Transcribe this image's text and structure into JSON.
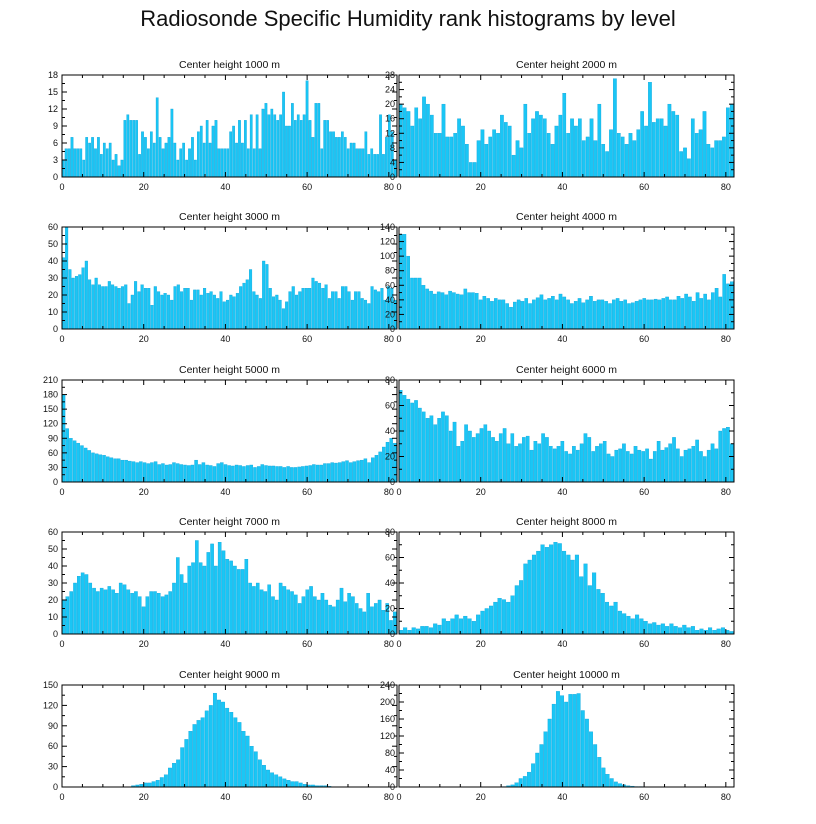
{
  "title": "Radiosonde Specific Humidity rank histograms by level",
  "bar_color": "#1ac6f5",
  "chart_data": [
    {
      "type": "bar",
      "title": "Center height 1000 m",
      "xlim": [
        0,
        82
      ],
      "xticks": [
        0,
        20,
        40,
        60,
        80
      ],
      "ylim": [
        0,
        18
      ],
      "yticks": [
        0,
        3,
        6,
        9,
        12,
        15,
        18
      ],
      "values": [
        3,
        5,
        5,
        7,
        5,
        5,
        5,
        3,
        7,
        6,
        7,
        5,
        7,
        4,
        6,
        5,
        6,
        3,
        4,
        2,
        3,
        10,
        11,
        10,
        10,
        10,
        4,
        8,
        7,
        5,
        8,
        6,
        14,
        7,
        5,
        6,
        7,
        12,
        6,
        3,
        5,
        6,
        3,
        5,
        7,
        3,
        8,
        9,
        6,
        10,
        6,
        9,
        10,
        5,
        5,
        5,
        5,
        8,
        9,
        6,
        10,
        6,
        10,
        5,
        11,
        5,
        11,
        5,
        12,
        13,
        11,
        12,
        11,
        10,
        11,
        15,
        9,
        9,
        13,
        10,
        11,
        10,
        11,
        17,
        10,
        7,
        13,
        13,
        5,
        10,
        10,
        8,
        8,
        7,
        7,
        8,
        7,
        5,
        6,
        6,
        5,
        5,
        5,
        8,
        4,
        5,
        4,
        4,
        11,
        4,
        7,
        11,
        8,
        3
      ]
    },
    {
      "type": "bar",
      "title": "Center height 2000 m",
      "xlim": [
        0,
        82
      ],
      "xticks": [
        0,
        20,
        40,
        60,
        80
      ],
      "ylim": [
        0,
        28
      ],
      "yticks": [
        0,
        4,
        8,
        12,
        16,
        20,
        24,
        28
      ],
      "values": [
        20,
        19,
        18,
        14,
        19,
        16,
        22,
        20,
        17,
        12,
        12,
        20,
        11,
        11,
        12,
        16,
        14,
        9,
        4,
        4,
        10,
        13,
        9,
        11,
        13,
        12,
        17,
        15,
        14,
        6,
        10,
        8,
        20,
        12,
        16,
        18,
        17,
        16,
        12,
        9,
        14,
        17,
        23,
        12,
        16,
        14,
        16,
        10,
        11,
        16,
        10,
        20,
        9,
        7,
        13,
        27,
        12,
        11,
        9,
        12,
        10,
        13,
        18,
        14,
        26,
        15,
        16,
        16,
        14,
        20,
        18,
        17,
        7,
        8,
        5,
        16,
        12,
        13,
        18,
        9,
        8,
        10,
        10,
        11,
        19,
        20
      ]
    },
    {
      "type": "bar",
      "title": "Center height 3000 m",
      "xlim": [
        0,
        82
      ],
      "xticks": [
        0,
        20,
        40,
        60,
        80
      ],
      "ylim": [
        0,
        60
      ],
      "yticks": [
        0,
        10,
        20,
        30,
        40,
        50,
        60
      ],
      "values": [
        42,
        60,
        35,
        30,
        31,
        32,
        36,
        40,
        29,
        26,
        30,
        26,
        25,
        25,
        28,
        26,
        25,
        24,
        25,
        26,
        15,
        20,
        28,
        22,
        26,
        24,
        24,
        14,
        25,
        22,
        20,
        21,
        20,
        17,
        25,
        26,
        22,
        24,
        24,
        17,
        23,
        23,
        20,
        24,
        21,
        22,
        20,
        18,
        22,
        16,
        17,
        20,
        19,
        21,
        25,
        27,
        29,
        35,
        22,
        20,
        18,
        40,
        38,
        24,
        19,
        20,
        17,
        12,
        16,
        22,
        25,
        20,
        22,
        24,
        24,
        24,
        30,
        28,
        27,
        24,
        26,
        18,
        22,
        22,
        18,
        25,
        25,
        22,
        17,
        22,
        22,
        18,
        17,
        15,
        25,
        23,
        22,
        24,
        17,
        25,
        24,
        17
      ]
    },
    {
      "type": "bar",
      "title": "Center height 4000 m",
      "xlim": [
        0,
        82
      ],
      "xticks": [
        0,
        20,
        40,
        60,
        80
      ],
      "ylim": [
        0,
        140
      ],
      "yticks": [
        0,
        20,
        40,
        60,
        80,
        100,
        120,
        140
      ],
      "values": [
        130,
        130,
        100,
        70,
        70,
        70,
        60,
        55,
        52,
        48,
        51,
        50,
        47,
        52,
        50,
        48,
        47,
        55,
        50,
        50,
        49,
        40,
        45,
        42,
        38,
        42,
        40,
        40,
        35,
        30,
        37,
        40,
        38,
        42,
        35,
        40,
        43,
        47,
        40,
        42,
        45,
        40,
        48,
        44,
        40,
        35,
        38,
        42,
        36,
        40,
        45,
        38,
        40,
        40,
        38,
        35,
        40,
        42,
        38,
        40,
        35,
        36,
        38,
        40,
        42,
        40,
        40,
        41,
        40,
        42,
        44,
        40,
        40,
        45,
        42,
        48,
        44,
        38,
        50,
        42,
        48,
        40,
        50,
        56,
        44,
        75,
        62,
        65
      ]
    },
    {
      "type": "bar",
      "title": "Center height 5000 m",
      "xlim": [
        0,
        82
      ],
      "xticks": [
        0,
        20,
        40,
        60,
        80
      ],
      "ylim": [
        0,
        210
      ],
      "yticks": [
        0,
        30,
        60,
        90,
        120,
        150,
        180,
        210
      ],
      "values": [
        180,
        110,
        90,
        85,
        80,
        75,
        70,
        65,
        60,
        58,
        56,
        55,
        52,
        50,
        48,
        48,
        45,
        45,
        43,
        42,
        40,
        42,
        40,
        38,
        40,
        42,
        36,
        38,
        35,
        36,
        40,
        38,
        36,
        35,
        34,
        35,
        45,
        36,
        40,
        35,
        34,
        32,
        38,
        40,
        36,
        34,
        33,
        35,
        34,
        32,
        34,
        35,
        30,
        32,
        36,
        34,
        33,
        33,
        32,
        32,
        30,
        32,
        30,
        30,
        31,
        32,
        33,
        34,
        36,
        35,
        35,
        38,
        38,
        40,
        39,
        40,
        42,
        44,
        40,
        42,
        44,
        45,
        48,
        40,
        50,
        55,
        62,
        72,
        82,
        90,
        80
      ]
    },
    {
      "type": "bar",
      "title": "Center height 6000 m",
      "xlim": [
        0,
        82
      ],
      "xticks": [
        0,
        20,
        40,
        60,
        80
      ],
      "ylim": [
        0,
        80
      ],
      "yticks": [
        0,
        20,
        40,
        60,
        80
      ],
      "values": [
        72,
        68,
        65,
        62,
        64,
        58,
        55,
        50,
        52,
        45,
        50,
        55,
        52,
        40,
        47,
        28,
        32,
        45,
        40,
        35,
        38,
        42,
        45,
        40,
        35,
        32,
        38,
        42,
        30,
        38,
        28,
        30,
        35,
        36,
        25,
        32,
        30,
        38,
        35,
        28,
        26,
        28,
        32,
        24,
        22,
        28,
        25,
        30,
        38,
        35,
        24,
        28,
        30,
        32,
        22,
        20,
        25,
        26,
        30,
        24,
        22,
        28,
        25,
        24,
        26,
        18,
        24,
        32,
        25,
        27,
        30,
        35,
        26,
        20,
        25,
        26,
        28,
        33,
        24,
        20,
        25,
        30,
        26,
        40,
        42,
        43,
        30
      ]
    },
    {
      "type": "bar",
      "title": "Center height 7000 m",
      "xlim": [
        0,
        82
      ],
      "xticks": [
        0,
        20,
        40,
        60,
        80
      ],
      "ylim": [
        0,
        60
      ],
      "yticks": [
        0,
        10,
        20,
        30,
        40,
        50,
        60
      ],
      "values": [
        20,
        22,
        25,
        30,
        34,
        36,
        35,
        30,
        27,
        25,
        27,
        26,
        28,
        26,
        24,
        30,
        29,
        26,
        24,
        25,
        22,
        16,
        22,
        25,
        25,
        24,
        22,
        23,
        25,
        30,
        45,
        35,
        30,
        40,
        42,
        55,
        42,
        40,
        48,
        53,
        40,
        54,
        49,
        44,
        43,
        40,
        38,
        38,
        44,
        30,
        28,
        30,
        26,
        25,
        29,
        22,
        20,
        30,
        28,
        26,
        25,
        23,
        18,
        22,
        26,
        28,
        22,
        20,
        24,
        20,
        17,
        16,
        20,
        27,
        19,
        24,
        22,
        18,
        15,
        13,
        24,
        16,
        18,
        20,
        14,
        18,
        8,
        13
      ]
    },
    {
      "type": "bar",
      "title": "Center height 8000 m",
      "xlim": [
        0,
        82
      ],
      "xticks": [
        0,
        20,
        40,
        60,
        80
      ],
      "ylim": [
        0,
        80
      ],
      "yticks": [
        0,
        20,
        40,
        60,
        80
      ],
      "values": [
        3,
        5,
        3,
        5,
        4,
        6,
        6,
        5,
        8,
        7,
        12,
        10,
        12,
        15,
        12,
        14,
        12,
        10,
        15,
        18,
        20,
        22,
        25,
        28,
        27,
        25,
        30,
        38,
        42,
        55,
        58,
        62,
        65,
        70,
        68,
        70,
        72,
        71,
        65,
        62,
        58,
        62,
        45,
        55,
        38,
        48,
        35,
        32,
        25,
        22,
        25,
        18,
        16,
        14,
        12,
        15,
        12,
        10,
        8,
        9,
        7,
        8,
        6,
        8,
        6,
        5,
        7,
        5,
        6,
        3,
        4,
        3,
        5,
        3,
        4,
        5,
        3,
        2
      ]
    },
    {
      "type": "bar",
      "title": "Center height 9000 m",
      "xlim": [
        0,
        82
      ],
      "xticks": [
        0,
        20,
        40,
        60,
        80
      ],
      "ylim": [
        0,
        150
      ],
      "yticks": [
        0,
        30,
        60,
        90,
        120,
        150
      ],
      "values": [
        0,
        0,
        0,
        0,
        0,
        0,
        0,
        0,
        0,
        0,
        0,
        0,
        0,
        0,
        0,
        0,
        0,
        2,
        3,
        4,
        6,
        6,
        8,
        10,
        14,
        18,
        28,
        35,
        40,
        58,
        70,
        82,
        92,
        98,
        102,
        112,
        120,
        138,
        128,
        125,
        116,
        110,
        102,
        95,
        82,
        75,
        60,
        52,
        40,
        32,
        25,
        21,
        18,
        15,
        12,
        10,
        8,
        8,
        6,
        4,
        3,
        3,
        2,
        2,
        2,
        1,
        0,
        0,
        0,
        0,
        0,
        0,
        0,
        0,
        0,
        0,
        0,
        0,
        0,
        0,
        0,
        0
      ]
    },
    {
      "type": "bar",
      "title": "Center height 10000 m",
      "xlim": [
        0,
        82
      ],
      "xticks": [
        0,
        20,
        40,
        60,
        80
      ],
      "ylim": [
        0,
        240
      ],
      "yticks": [
        0,
        40,
        80,
        120,
        160,
        200,
        240
      ],
      "values": [
        0,
        0,
        0,
        0,
        0,
        0,
        0,
        0,
        0,
        0,
        0,
        0,
        0,
        0,
        0,
        0,
        0,
        0,
        0,
        0,
        0,
        0,
        0,
        0,
        0,
        1,
        3,
        5,
        10,
        20,
        25,
        35,
        55,
        80,
        100,
        130,
        160,
        195,
        225,
        215,
        200,
        218,
        218,
        220,
        180,
        160,
        130,
        100,
        70,
        45,
        30,
        20,
        12,
        8,
        5,
        3,
        2,
        1,
        1,
        0,
        0,
        0,
        0,
        0,
        0,
        0,
        0,
        0,
        0,
        0,
        0,
        0,
        0,
        0,
        0,
        0,
        0,
        0,
        0,
        0,
        0
      ]
    }
  ]
}
